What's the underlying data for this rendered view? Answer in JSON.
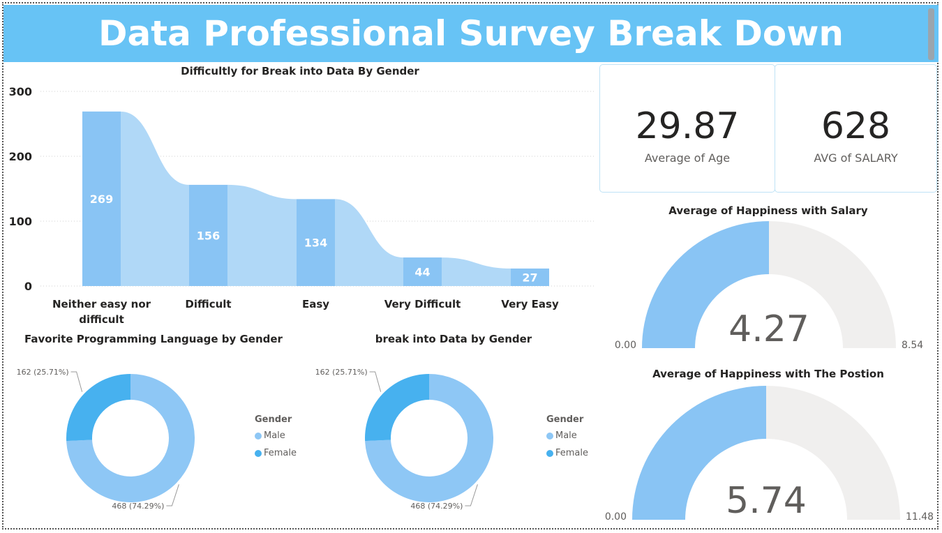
{
  "header": {
    "title": "Data Professional Survey Break Down"
  },
  "colors": {
    "header_bg": "#67c3f5",
    "bar": "#89c4f4",
    "ribbon": "#b0d8f7",
    "female": "#47b1ef",
    "male": "#8ec7f5",
    "gauge_track": "#f0efee"
  },
  "kpis": {
    "age": {
      "value": "29.87",
      "label": "Average of Age"
    },
    "salary": {
      "value": "628",
      "label": "AVG of SALARY"
    }
  },
  "chart_data": [
    {
      "type": "bar",
      "title": "Difficultly for Break into Data By Gender",
      "categories": [
        "Neither easy nor difficult",
        "Difficult",
        "Easy",
        "Very Difficult",
        "Very Easy"
      ],
      "category_lines": [
        [
          "Neither easy nor",
          "difficult"
        ],
        [
          "Difficult"
        ],
        [
          "Easy"
        ],
        [
          "Very Difficult"
        ],
        [
          "Very Easy"
        ]
      ],
      "values": [
        269,
        156,
        134,
        44,
        27
      ],
      "y_ticks": [
        "300",
        "200",
        "100",
        "0"
      ],
      "ylim": [
        0,
        300
      ],
      "grid": true
    },
    {
      "type": "pie",
      "title": "Favorite Programming Language by Gender",
      "labels": [
        "Male",
        "Female"
      ],
      "values": [
        468,
        162
      ],
      "data_labels": [
        "468 (74.29%)",
        "162 (25.71%)"
      ],
      "legend_title": "Gender",
      "legend": [
        "Male",
        "Female"
      ]
    },
    {
      "type": "pie",
      "title": "break into Data by Gender",
      "labels": [
        "Male",
        "Female"
      ],
      "values": [
        468,
        162
      ],
      "data_labels": [
        "468 (74.29%)",
        "162 (25.71%)"
      ],
      "legend_title": "Gender",
      "legend": [
        "Male",
        "Female"
      ]
    },
    {
      "type": "gauge",
      "title": "Average of Happiness  with Salary",
      "value": 4.27,
      "min": 0,
      "max": 8.54,
      "value_label": "4.27",
      "min_label": "0.00",
      "max_label": "8.54"
    },
    {
      "type": "gauge",
      "title": "Average of Happiness with The Postion",
      "value": 5.74,
      "min": 0,
      "max": 11.48,
      "value_label": "5.74",
      "min_label": "0.00",
      "max_label": "11.48"
    }
  ]
}
